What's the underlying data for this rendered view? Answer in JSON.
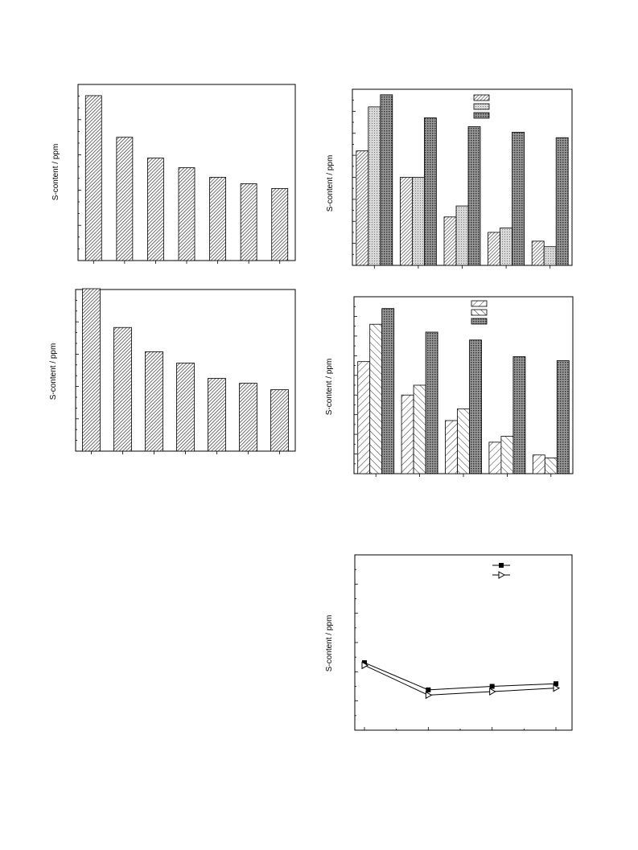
{
  "page": {
    "background": "#ffffff"
  },
  "chart_data": [
    {
      "id": "chart-a",
      "type": "bar",
      "ylabel": "S-content / ppm",
      "ylim": [
        0,
        11
      ],
      "categories": [
        "",
        "",
        "",
        "",
        "",
        "",
        ""
      ],
      "series": [
        {
          "pattern": "hatch-a",
          "values": [
            10.3,
            7.7,
            6.4,
            5.8,
            5.2,
            4.8,
            4.5
          ]
        }
      ],
      "grid": false,
      "legend": "none"
    },
    {
      "id": "chart-b",
      "type": "bar",
      "ylabel": "S-content / ppm",
      "ylim": [
        0,
        8
      ],
      "categories": [
        "",
        "",
        "",
        "",
        ""
      ],
      "series": [
        {
          "pattern": "hatch-b",
          "values": [
            5.2,
            4.0,
            2.2,
            1.5,
            1.1
          ]
        },
        {
          "pattern": "grid-light",
          "values": [
            7.2,
            4.0,
            2.7,
            1.7,
            0.85
          ]
        },
        {
          "pattern": "grid-dark",
          "values": [
            7.75,
            6.7,
            6.3,
            6.05,
            5.8
          ]
        }
      ],
      "grid": false,
      "legend": "top-right"
    },
    {
      "id": "chart-c",
      "type": "bar",
      "ylabel": "S-content / ppm",
      "ylim": [
        0,
        10
      ],
      "categories": [
        "",
        "",
        "",
        "",
        "",
        "",
        ""
      ],
      "series": [
        {
          "pattern": "hatch-a",
          "values": [
            10.05,
            7.65,
            6.15,
            5.45,
            4.5,
            4.2,
            3.8
          ]
        }
      ],
      "grid": false,
      "legend": "none"
    },
    {
      "id": "chart-d",
      "type": "bar",
      "ylabel": "S-content / ppm",
      "ylim": [
        0,
        9
      ],
      "categories": [
        "",
        "",
        "",
        "",
        ""
      ],
      "series": [
        {
          "pattern": "hatch-c",
          "values": [
            5.7,
            4.0,
            2.7,
            1.6,
            0.95
          ]
        },
        {
          "pattern": "hatch-d",
          "values": [
            7.6,
            4.5,
            3.3,
            1.9,
            0.8
          ]
        },
        {
          "pattern": "grid-dark",
          "values": [
            8.4,
            7.2,
            6.8,
            5.95,
            5.75
          ]
        }
      ],
      "grid": false,
      "legend": "top-right"
    },
    {
      "id": "chart-e",
      "type": "line",
      "ylabel": "S-content / ppm",
      "ylim": [
        0,
        20
      ],
      "x": [
        0,
        1,
        2,
        3
      ],
      "series": [
        {
          "marker": "square-filled",
          "values": [
            7.7,
            4.6,
            5.0,
            5.3
          ]
        },
        {
          "marker": "triangle-open",
          "values": [
            7.4,
            4.0,
            4.4,
            4.8
          ]
        }
      ],
      "grid": false,
      "legend": "top-right"
    }
  ]
}
